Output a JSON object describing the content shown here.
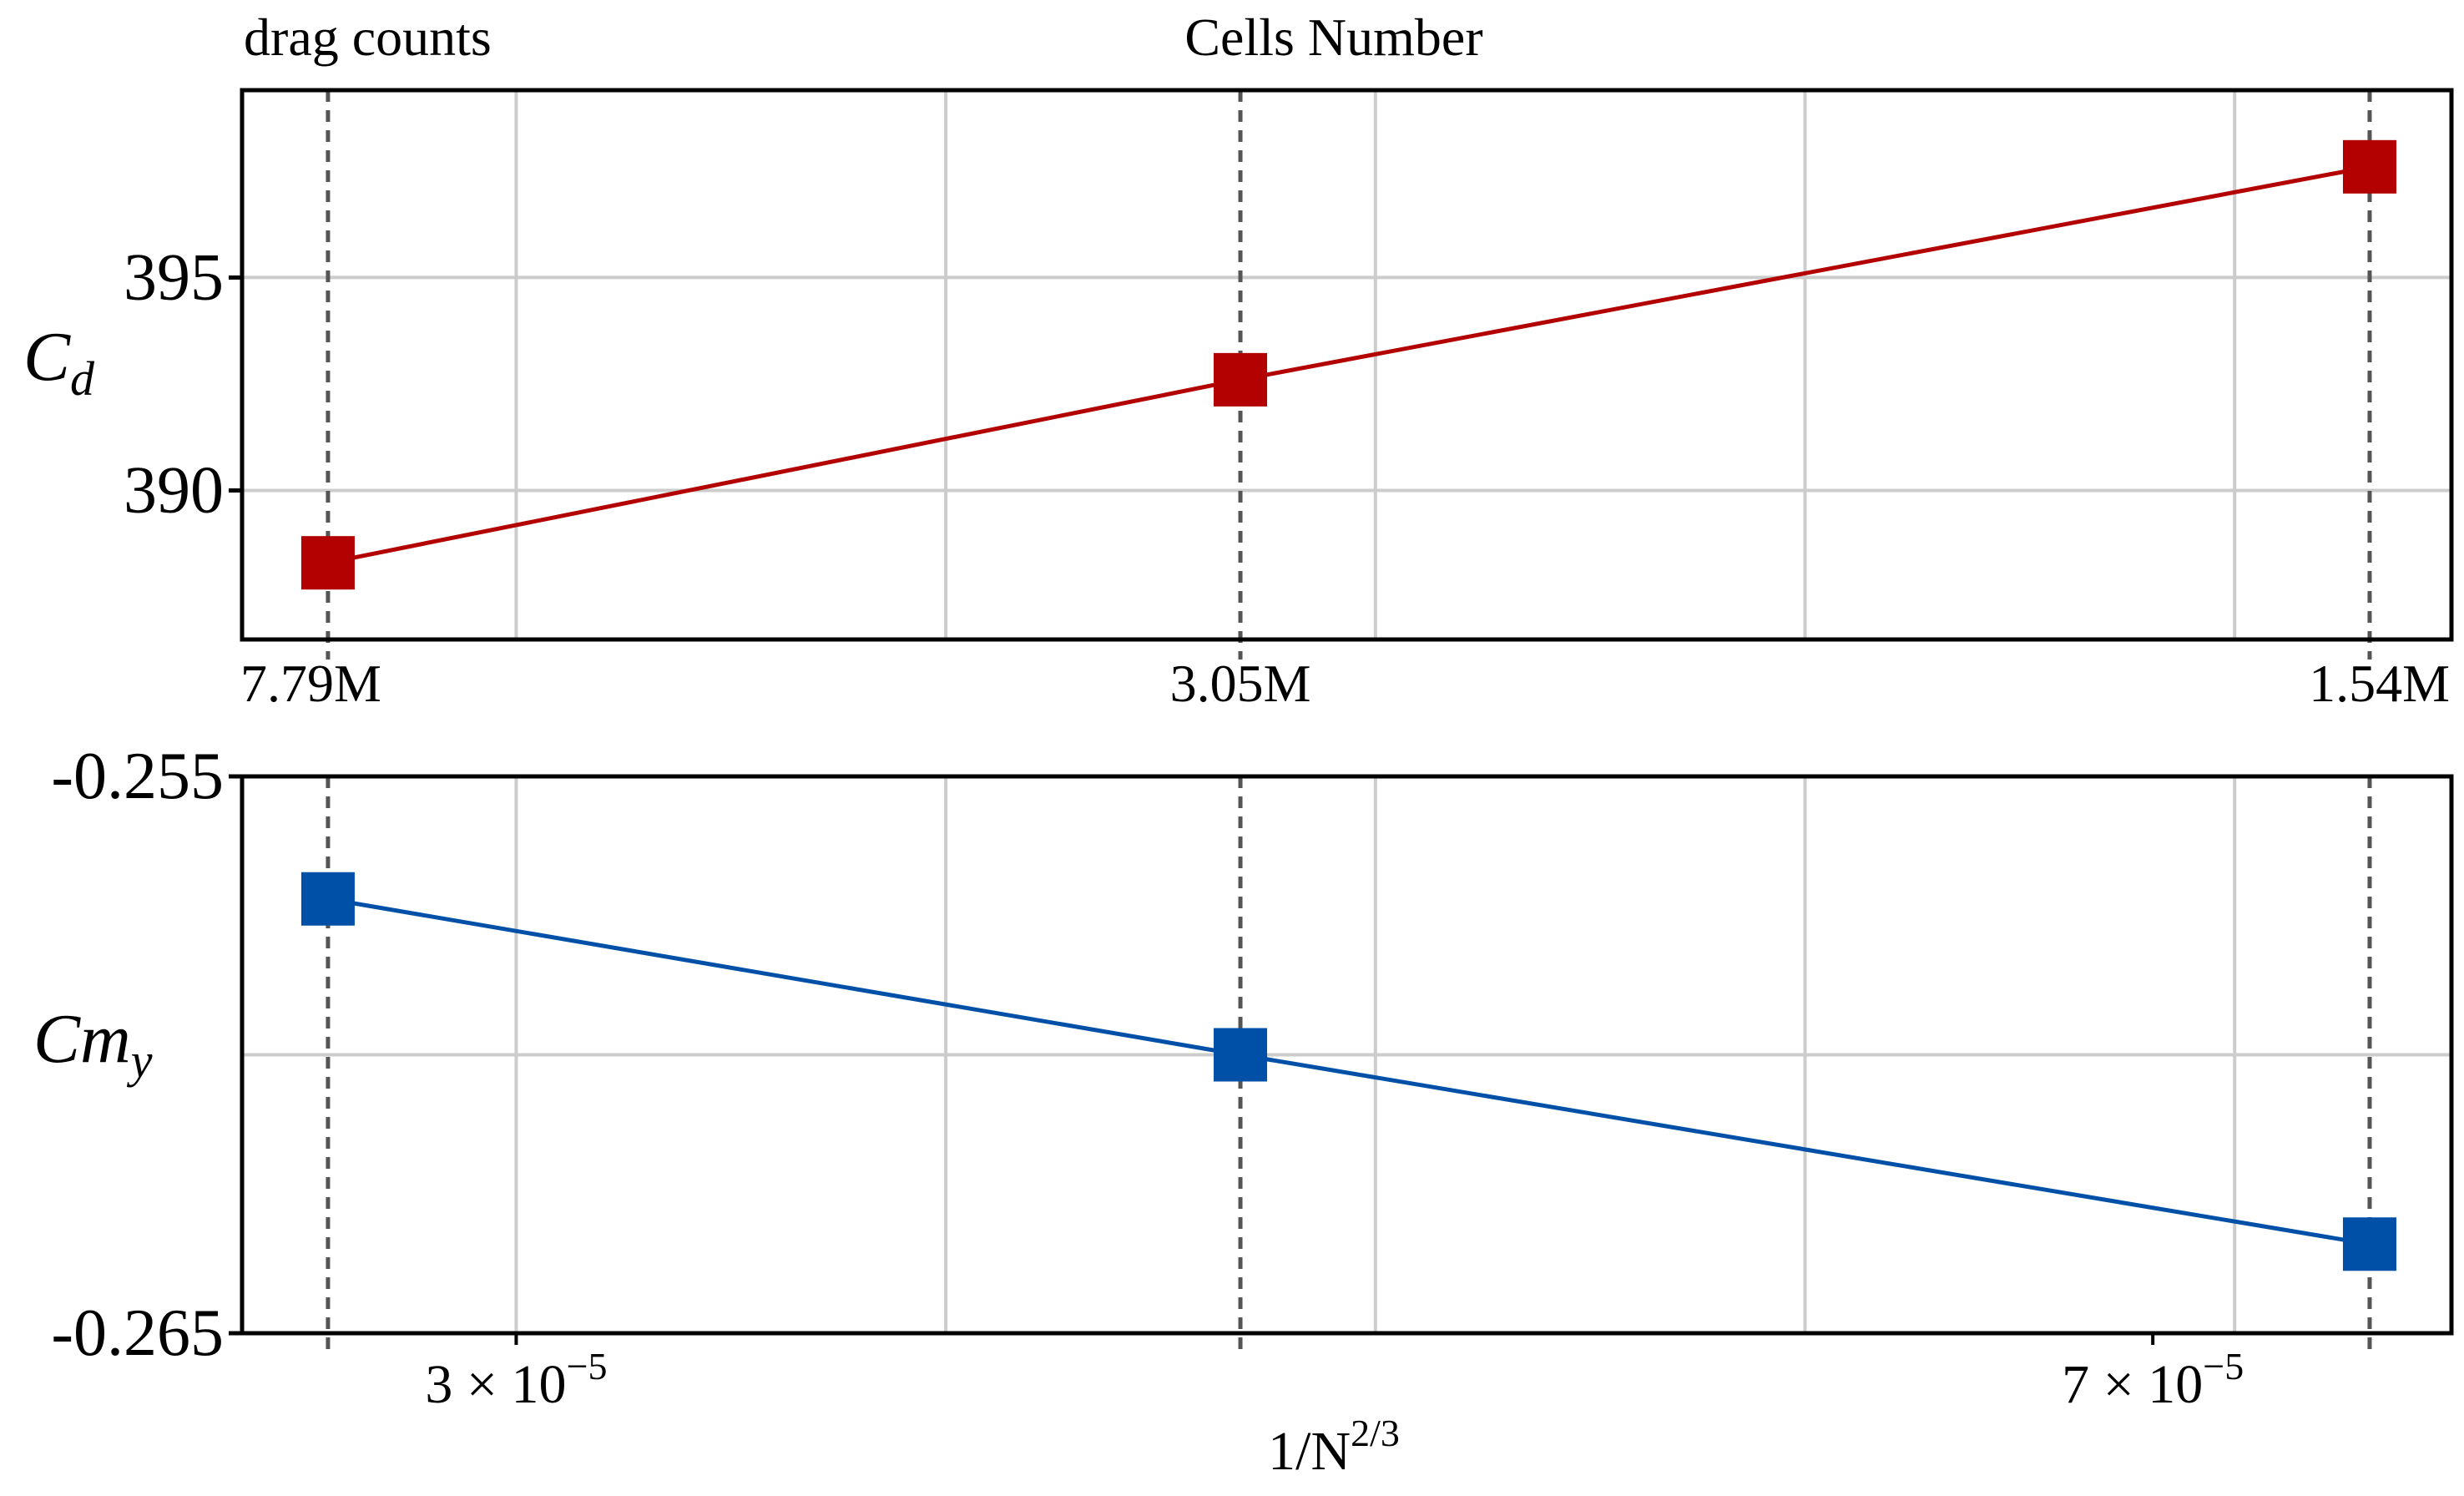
{
  "chart_data": [
    {
      "type": "line",
      "panel": "top",
      "title": "Cells Number",
      "unit_label": "drag counts",
      "ylabel": {
        "main": "C",
        "sub": "d"
      },
      "x": [
        2.54e-05,
        4.77e-05,
        7.53e-05
      ],
      "top_axis_ticks": [
        "7.79M",
        "3.05M",
        "1.54M"
      ],
      "series": [
        {
          "name": "C_d",
          "color": "#b30000",
          "values": [
            388.3,
            392.6,
            397.6
          ]
        }
      ],
      "xlim": [
        2.33e-05,
        7.73e-05
      ],
      "ylim": [
        386.5,
        399.4
      ],
      "yticks": [
        {
          "value": 390,
          "label": "390"
        },
        {
          "value": 395,
          "label": "395"
        }
      ],
      "grid": true
    },
    {
      "type": "line",
      "panel": "bottom",
      "ylabel": {
        "main": "Cm",
        "sub": "y"
      },
      "xlabel": {
        "base": "1/N",
        "sup": "2/3"
      },
      "x": [
        2.54e-05,
        4.77e-05,
        7.53e-05
      ],
      "series": [
        {
          "name": "Cm_y",
          "color": "#0050a8",
          "values": [
            -0.2572,
            -0.26,
            -0.2634
          ]
        }
      ],
      "xlim": [
        2.33e-05,
        7.73e-05
      ],
      "ylim": [
        -0.265,
        -0.255
      ],
      "yticks": [
        {
          "value": -0.255,
          "label": "-0.255"
        },
        {
          "value": -0.265,
          "label": "-0.265"
        }
      ],
      "xticks": [
        {
          "value": 3e-05,
          "label": "3 × 10",
          "exp": "−5"
        },
        {
          "value": 7e-05,
          "label": "7 × 10",
          "exp": "−5"
        }
      ],
      "grid": true
    }
  ]
}
